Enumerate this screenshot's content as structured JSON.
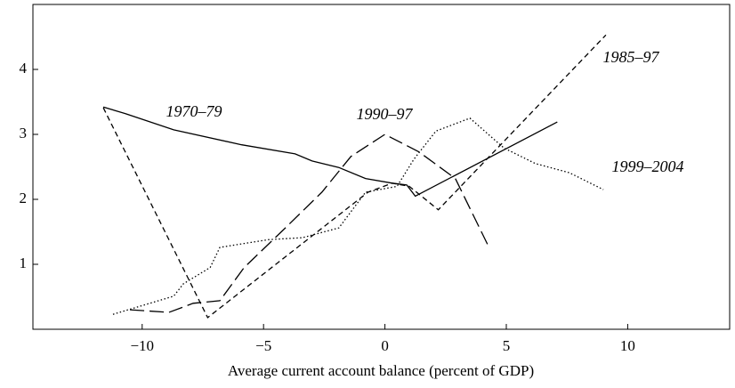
{
  "chart_data": {
    "type": "line",
    "x_label": "Average current account balance (percent of GDP)",
    "xlim": [
      -14.5,
      14.2
    ],
    "ylim": [
      0,
      5
    ],
    "xticks": [
      {
        "value": -10,
        "label": "−10"
      },
      {
        "value": -5,
        "label": "−5"
      },
      0,
      5,
      10
    ],
    "yticks": [
      1,
      2,
      3,
      4
    ],
    "series": [
      {
        "name": "1970–79",
        "color": "#000000",
        "dash": "none",
        "x": [
          -11.6,
          -10.7,
          -8.7,
          -5.9,
          -3.7,
          -3.0,
          -1.9,
          -0.8,
          0.3,
          0.9,
          1.25,
          7.1
        ],
        "values": [
          3.42,
          3.32,
          3.07,
          2.84,
          2.7,
          2.59,
          2.49,
          2.32,
          2.25,
          2.22,
          2.05,
          3.19
        ]
      },
      {
        "name": "1985–97",
        "color": "#000000",
        "dash": "6,4",
        "x": [
          -11.6,
          -7.3,
          -0.7,
          0.3,
          1.0,
          2.2,
          9.1
        ],
        "values": [
          3.41,
          0.18,
          2.11,
          2.25,
          2.2,
          1.84,
          4.53
        ]
      },
      {
        "name": "1990–97",
        "color": "#000000",
        "dash": "16,6",
        "x": [
          -10.5,
          -8.9,
          -7.9,
          -6.8,
          -5.8,
          -4.1,
          -2.6,
          -1.4,
          0,
          1.4,
          2.9,
          4.25
        ],
        "values": [
          0.3,
          0.26,
          0.4,
          0.44,
          0.95,
          1.56,
          2.11,
          2.66,
          3.0,
          2.73,
          2.32,
          1.29
        ]
      },
      {
        "name": "1999–2004",
        "color": "#000000",
        "dash": "1.5,2.5",
        "x": [
          -11.2,
          -8.7,
          -8.3,
          -7.2,
          -6.8,
          -4.8,
          -3.4,
          -1.9,
          -0.8,
          0.5,
          1.2,
          2.1,
          3.5,
          4.9,
          6.2,
          7.6,
          9.0
        ],
        "values": [
          0.23,
          0.51,
          0.7,
          0.95,
          1.26,
          1.38,
          1.41,
          1.56,
          2.11,
          2.2,
          2.62,
          3.05,
          3.25,
          2.79,
          2.55,
          2.41,
          2.15
        ]
      }
    ]
  }
}
